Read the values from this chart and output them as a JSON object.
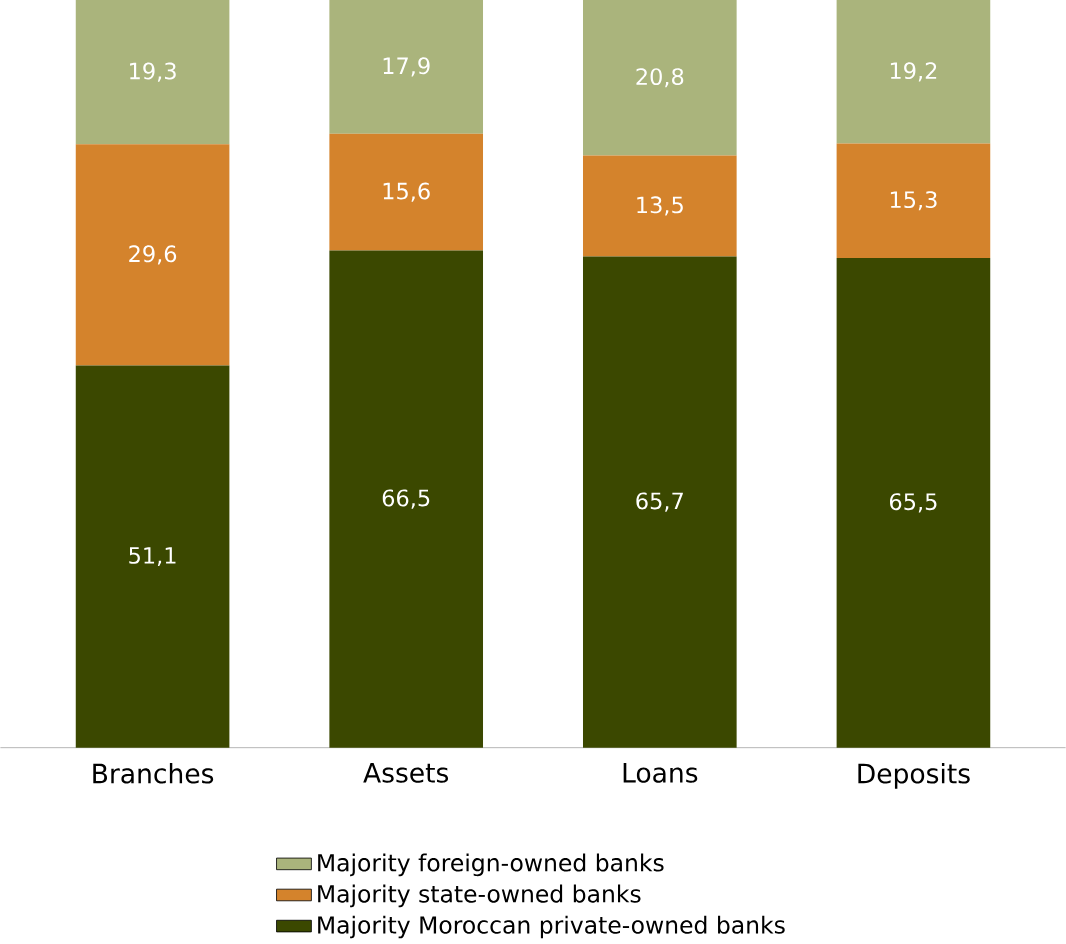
{
  "chart_data": {
    "type": "bar",
    "stacked": true,
    "categories": [
      "Branches",
      "Assets",
      "Loans",
      "Deposits"
    ],
    "ylim": [
      0,
      100
    ],
    "legend": "bottom",
    "tick_labels": "x",
    "series": [
      {
        "name": "Majority Moroccan private-owned banks",
        "color": "#3b4800",
        "values": [
          51.1,
          66.5,
          65.7,
          65.5
        ],
        "value_labels": [
          "51,1",
          "66,5",
          "65,7",
          "65,5"
        ]
      },
      {
        "name": "Majority state-owned banks",
        "color": "#d4832c",
        "values": [
          29.6,
          15.6,
          13.5,
          15.3
        ],
        "value_labels": [
          "29,6",
          "15,6",
          "13,5",
          "15,3"
        ]
      },
      {
        "name": "Majority foreign-owned banks",
        "color": "#aab47c",
        "values": [
          19.3,
          17.9,
          20.8,
          19.2
        ],
        "value_labels": [
          "19,3",
          "17,9",
          "20,8",
          "19,2"
        ]
      }
    ]
  }
}
